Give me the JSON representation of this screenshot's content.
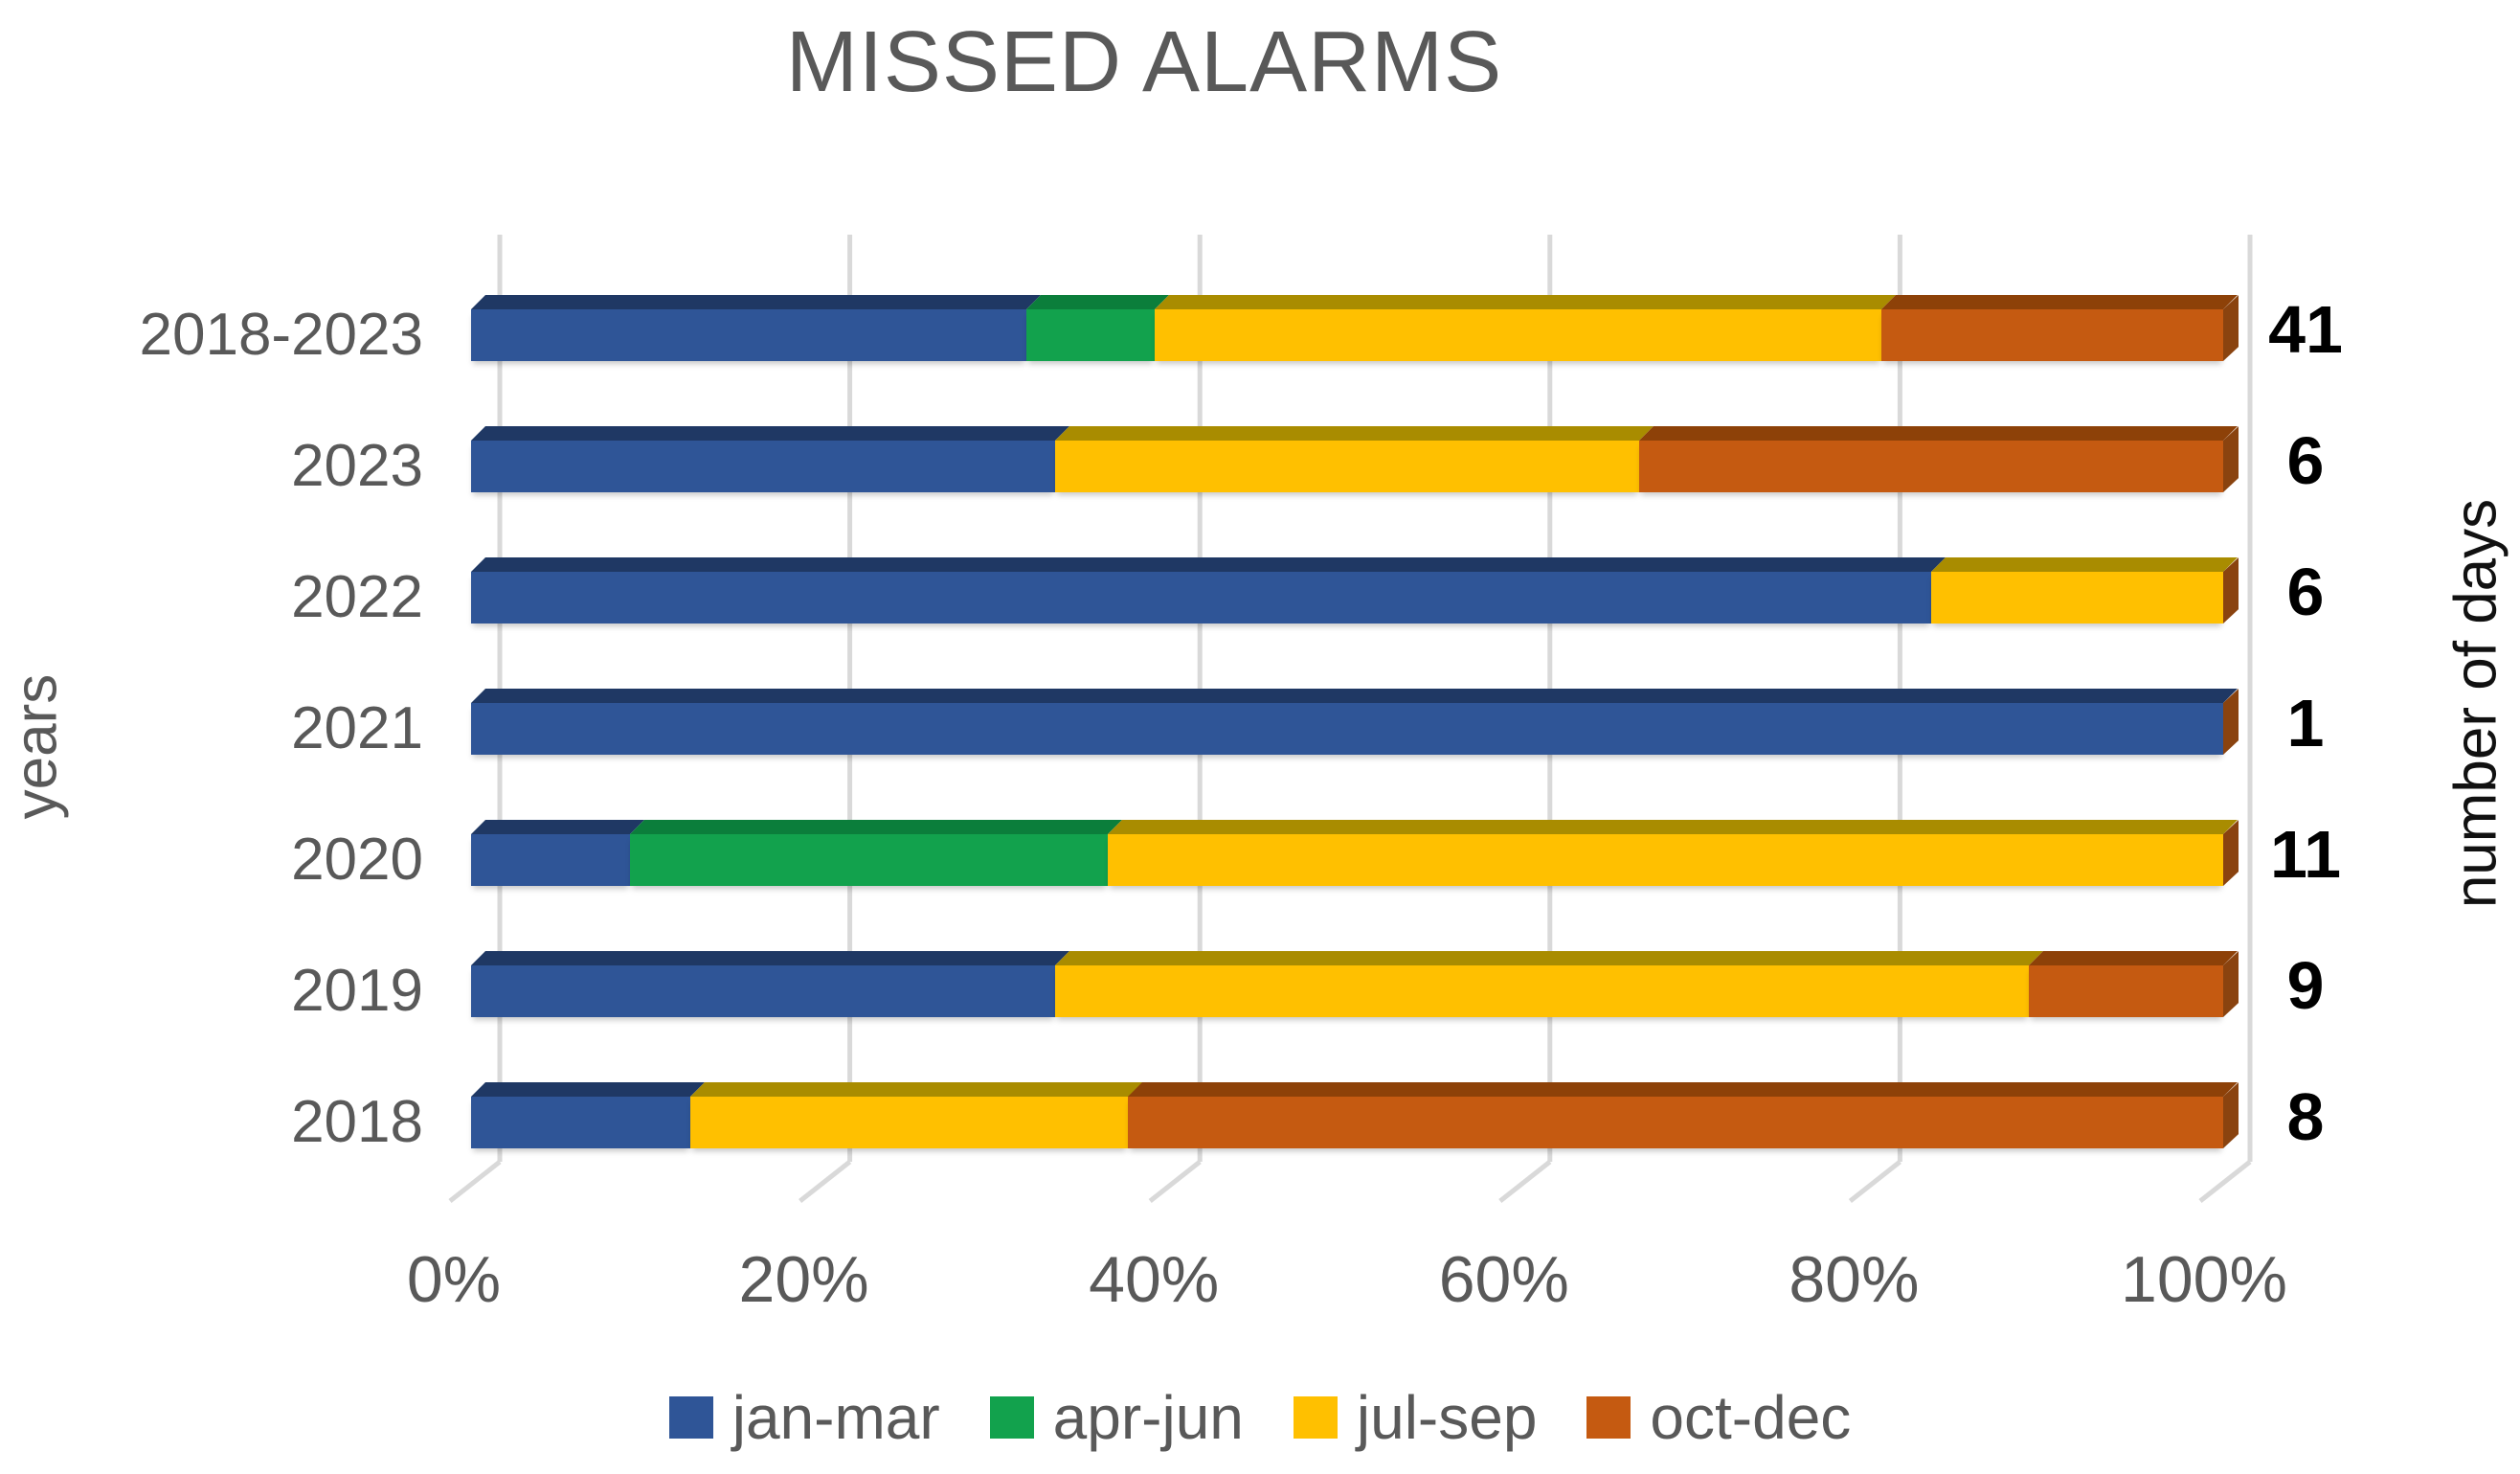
{
  "chart_data": {
    "type": "bar",
    "variant": "3d-100-percent-stacked-horizontal",
    "title": "MISSED ALARMS",
    "y_axis_title": "years",
    "right_axis_title": "number of days",
    "categories": [
      "2018-2023",
      "2023",
      "2022",
      "2021",
      "2020",
      "2019",
      "2018"
    ],
    "totals": [
      41,
      6,
      6,
      1,
      11,
      9,
      8
    ],
    "series": [
      {
        "name": "jan-mar",
        "color": "#2F5597",
        "top_color": "#1F3864",
        "days": [
          13,
          2,
          5,
          1,
          1,
          3,
          1
        ]
      },
      {
        "name": "apr-jun",
        "color": "#12A24D",
        "top_color": "#0B7E3B",
        "days": [
          3,
          0,
          0,
          0,
          3,
          0,
          0
        ]
      },
      {
        "name": "jul-sep",
        "color": "#FFC000",
        "top_color": "#A98C00",
        "days": [
          17,
          2,
          1,
          0,
          7,
          5,
          2
        ]
      },
      {
        "name": "oct-dec",
        "color": "#C55A11",
        "top_color": "#8D4108",
        "days": [
          8,
          2,
          0,
          0,
          0,
          1,
          5
        ]
      }
    ],
    "x_ticks": [
      "0%",
      "20%",
      "40%",
      "60%",
      "80%",
      "100%"
    ],
    "x_range": [
      0,
      100
    ],
    "grid": true,
    "legend_position": "bottom",
    "end_cap_color": "#8A430F",
    "gridline_color": "#D9D9D9",
    "text_color": "#595959",
    "value_color": "#000000",
    "background_color": "#FFFFFF"
  }
}
